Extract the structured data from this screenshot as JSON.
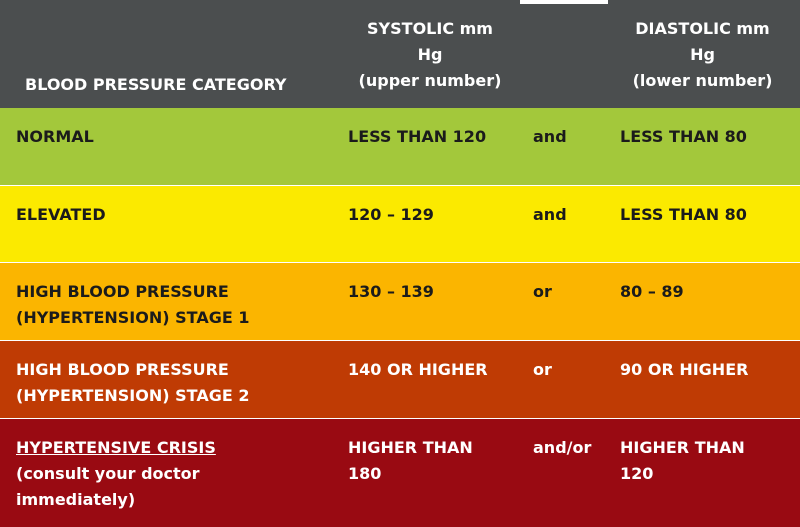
{
  "header": {
    "category": "BLOOD PRESSURE CATEGORY",
    "systolic": [
      "SYSTOLIC mm",
      "Hg",
      "(upper number)"
    ],
    "diastolic": [
      "DIASTOLIC mm",
      "Hg",
      "(lower number)"
    ]
  },
  "rows": [
    {
      "category": "NORMAL",
      "systolic": "LESS THAN 120",
      "join": "and",
      "diastolic": "LESS THAN 80"
    },
    {
      "category": "ELEVATED",
      "systolic": "120 – 129",
      "join": "and",
      "diastolic": "LESS THAN 80"
    },
    {
      "category": "HIGH BLOOD PRESSURE (HYPERTENSION) STAGE 1",
      "systolic": "130 – 139",
      "join": "or",
      "diastolic": "80 – 89"
    },
    {
      "category": "HIGH BLOOD PRESSURE (HYPERTENSION) STAGE 2",
      "systolic": "140 OR HIGHER",
      "join": "or",
      "diastolic": "90 OR HIGHER"
    },
    {
      "category": "HYPERTENSIVE CRISIS",
      "note": "(consult your doctor immediately)",
      "systolic": "HIGHER THAN 180",
      "join": "and/or",
      "diastolic": "HIGHER THAN 120"
    }
  ]
}
